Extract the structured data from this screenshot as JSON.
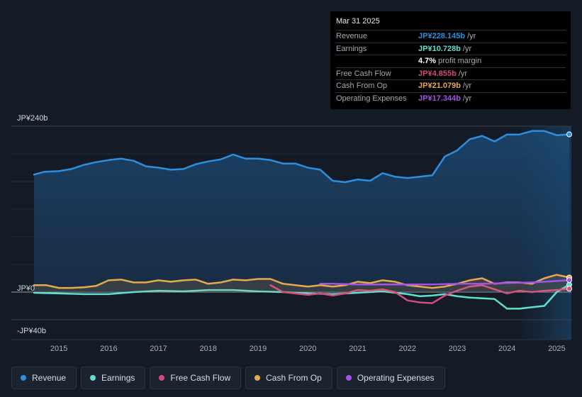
{
  "tooltip": {
    "date": "Mar 31 2025",
    "rows": [
      {
        "label": "Revenue",
        "value": "JP¥228.145b",
        "unit": "/yr",
        "color": "#2d8fe0"
      },
      {
        "label": "Earnings",
        "value": "JP¥10.728b",
        "unit": "/yr",
        "color": "#5fdfcf"
      },
      {
        "label": "",
        "value": "4.7%",
        "unit": "profit margin",
        "color": "#ffffff"
      },
      {
        "label": "Free Cash Flow",
        "value": "JP¥4.855b",
        "unit": "/yr",
        "color": "#d44b80"
      },
      {
        "label": "Cash From Op",
        "value": "JP¥21.079b",
        "unit": "/yr",
        "color": "#e6a94f"
      },
      {
        "label": "Operating Expenses",
        "value": "JP¥17.344b",
        "unit": "/yr",
        "color": "#a453e6"
      }
    ]
  },
  "legend": [
    {
      "label": "Revenue",
      "color": "#2d8fe0"
    },
    {
      "label": "Earnings",
      "color": "#5fdfcf"
    },
    {
      "label": "Free Cash Flow",
      "color": "#d44b80"
    },
    {
      "label": "Cash From Op",
      "color": "#e6a94f"
    },
    {
      "label": "Operating Expenses",
      "color": "#a453e6"
    }
  ],
  "chart_data": {
    "type": "line",
    "title": "",
    "xlabel": "",
    "ylabel": "",
    "ylim": [
      -40,
      240
    ],
    "xlim": [
      2014.5,
      2025.25
    ],
    "y_ticks": [
      {
        "value": 240,
        "label": "JP¥240b"
      },
      {
        "value": 0,
        "label": "JP¥0"
      },
      {
        "value": -40,
        "label": "-JP¥40b"
      }
    ],
    "x_ticks": [
      2015,
      2016,
      2017,
      2018,
      2019,
      2020,
      2021,
      2022,
      2023,
      2024,
      2025
    ],
    "forecast_start": 2024.25,
    "series": [
      {
        "name": "Revenue",
        "color": "#2d8fe0",
        "fill": true,
        "x": [
          2014.5,
          2014.7,
          2015.0,
          2015.25,
          2015.5,
          2015.75,
          2016.0,
          2016.25,
          2016.5,
          2016.75,
          2017.0,
          2017.25,
          2017.5,
          2017.75,
          2018.0,
          2018.25,
          2018.5,
          2018.75,
          2019.0,
          2019.25,
          2019.5,
          2019.75,
          2020.0,
          2020.25,
          2020.5,
          2020.75,
          2021.0,
          2021.25,
          2021.5,
          2021.75,
          2022.0,
          2022.25,
          2022.5,
          2022.75,
          2023.0,
          2023.25,
          2023.5,
          2023.75,
          2024.0,
          2024.25,
          2024.5,
          2024.75,
          2025.0,
          2025.25
        ],
        "values": [
          170,
          174,
          175,
          178,
          184,
          188,
          191,
          193,
          190,
          182,
          180,
          177,
          178,
          185,
          189,
          192,
          199,
          193,
          193,
          191,
          186,
          186,
          180,
          177,
          161,
          159,
          163,
          161,
          172,
          167,
          165,
          167,
          169,
          196,
          205,
          221,
          226,
          218,
          228,
          228,
          233,
          233,
          227,
          228.145
        ]
      },
      {
        "name": "Earnings",
        "color": "#5fdfcf",
        "fill": false,
        "x": [
          2014.5,
          2015.0,
          2015.5,
          2016.0,
          2016.5,
          2017.0,
          2017.5,
          2018.0,
          2018.5,
          2019.0,
          2019.5,
          2020.0,
          2020.5,
          2021.0,
          2021.5,
          2022.0,
          2022.25,
          2022.5,
          2022.75,
          2023.0,
          2023.25,
          2023.5,
          2023.75,
          2024.0,
          2024.25,
          2024.5,
          2024.75,
          2025.0,
          2025.25
        ],
        "values": [
          -1,
          -2,
          -3,
          -3,
          0,
          2,
          1,
          3,
          3,
          1,
          0,
          -2,
          -3,
          -1,
          1,
          -3,
          -6,
          -5,
          -3,
          -6,
          -8,
          -9,
          -10,
          -24,
          -24,
          -22,
          -20,
          0,
          10.728
        ]
      },
      {
        "name": "Free Cash Flow",
        "color": "#d44b80",
        "fill": false,
        "x": [
          2019.25,
          2019.5,
          2020.0,
          2020.25,
          2020.5,
          2020.75,
          2021.0,
          2021.25,
          2021.5,
          2021.75,
          2022.0,
          2022.25,
          2022.5,
          2022.75,
          2023.0,
          2023.25,
          2023.5,
          2023.75,
          2024.0,
          2024.25,
          2024.5,
          2024.75,
          2025.0,
          2025.25
        ],
        "values": [
          10,
          0,
          -4,
          -2,
          -5,
          -2,
          3,
          2,
          4,
          0,
          -12,
          -15,
          -16,
          -5,
          2,
          8,
          10,
          4,
          -2,
          2,
          0,
          2,
          3,
          4.855
        ]
      },
      {
        "name": "Cash From Op",
        "color": "#e6a94f",
        "fill": true,
        "x": [
          2014.5,
          2014.75,
          2015.0,
          2015.25,
          2015.5,
          2015.75,
          2016.0,
          2016.25,
          2016.5,
          2016.75,
          2017.0,
          2017.25,
          2017.5,
          2017.75,
          2018.0,
          2018.25,
          2018.5,
          2018.75,
          2019.0,
          2019.25,
          2019.5,
          2019.75,
          2020.0,
          2020.25,
          2020.5,
          2020.75,
          2021.0,
          2021.25,
          2021.5,
          2021.75,
          2022.0,
          2022.25,
          2022.5,
          2022.75,
          2023.0,
          2023.25,
          2023.5,
          2023.75,
          2024.0,
          2024.25,
          2024.5,
          2024.75,
          2025.0,
          2025.25
        ],
        "values": [
          10,
          10,
          6,
          6,
          7,
          9,
          17,
          18,
          14,
          14,
          17,
          15,
          17,
          18,
          12,
          14,
          18,
          17,
          19,
          19,
          12,
          10,
          8,
          10,
          8,
          10,
          15,
          13,
          17,
          15,
          10,
          8,
          6,
          8,
          12,
          17,
          20,
          12,
          14,
          14,
          12,
          20,
          25,
          21.079
        ]
      },
      {
        "name": "Operating Expenses",
        "color": "#a453e6",
        "fill": false,
        "x": [
          2020.25,
          2020.5,
          2021.0,
          2021.5,
          2022.0,
          2022.5,
          2023.0,
          2023.5,
          2024.0,
          2024.5,
          2025.0,
          2025.25
        ],
        "values": [
          12,
          12,
          11,
          11,
          11,
          11,
          12,
          12,
          13,
          14,
          16,
          17.344
        ]
      }
    ]
  }
}
